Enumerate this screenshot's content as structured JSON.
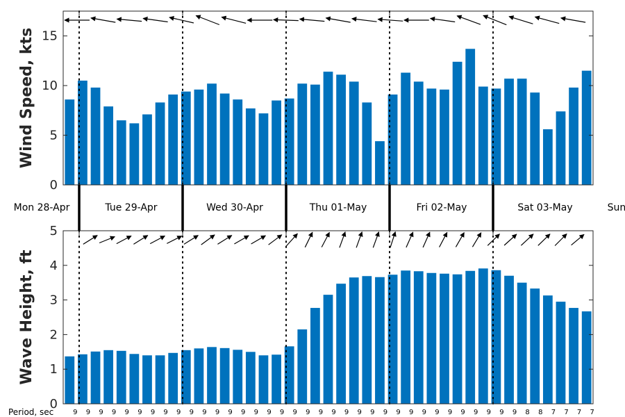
{
  "chart_data": {
    "type": "bar",
    "colors": {
      "bar": "#0072BD",
      "axis": "#262626",
      "arrow": "#000000"
    },
    "day_labels": [
      "Mon 28-Apr",
      "Tue 29-Apr",
      "Wed 30-Apr",
      "Thu 01-May",
      "Fri 02-May",
      "Sat 03-May",
      "Sun"
    ],
    "period_label": "Period, sec",
    "wind": {
      "ylabel": "Wind Speed, kts",
      "ylim": [
        0,
        17.5
      ],
      "yticks": [
        0,
        5,
        10,
        15
      ],
      "values": [
        8.6,
        10.5,
        9.8,
        7.9,
        6.5,
        6.2,
        7.1,
        8.3,
        9.1,
        9.4,
        9.6,
        10.2,
        9.2,
        8.6,
        7.7,
        7.2,
        8.5,
        8.7,
        10.2,
        10.1,
        11.4,
        11.1,
        10.4,
        8.3,
        4.4,
        9.1,
        11.3,
        10.4,
        9.7,
        9.6,
        12.4,
        13.7,
        9.9,
        9.7,
        10.7,
        10.7,
        9.3,
        5.6,
        7.4,
        9.8,
        11.5
      ],
      "direction_arrows": [
        "from-east",
        "from-east",
        "from-east",
        "from-east",
        "from-east",
        "from-east",
        "from-east",
        "from-east",
        "from-east",
        "from-east",
        "from-east",
        "from-east",
        "from-east",
        "from-east",
        "from-east",
        "from-east",
        "from-east",
        "from-east",
        "from-east",
        "from-east",
        "from-east",
        "from-east",
        "from-east",
        "from-east",
        "from-east",
        "from-east",
        "from-east",
        "from-east",
        "from-east",
        "from-east",
        "from-east",
        "from-east",
        "from-east",
        "from-east",
        "from-east",
        "from-east",
        "from-east",
        "from-east",
        "from-east",
        "from-east",
        "from-east"
      ],
      "arrow_angles_deg": [
        180,
        170,
        175,
        172,
        167,
        159,
        166,
        180,
        178,
        175,
        170,
        173,
        176,
        180,
        172,
        160,
        158,
        163,
        165,
        170,
        166,
        162,
        160,
        165,
        160,
        175,
        175,
        178,
        180,
        178,
        176,
        178,
        180,
        182,
        186,
        188,
        186,
        180
      ],
      "arrow_positions": [
        0,
        1,
        2,
        3,
        4,
        5,
        6,
        7,
        8,
        9,
        10,
        11,
        12,
        13,
        14,
        15,
        16,
        17,
        18,
        19,
        20,
        21,
        22,
        23,
        24,
        25,
        26,
        27,
        28,
        29,
        30,
        31,
        32,
        33,
        34,
        35,
        36,
        37
      ]
    },
    "wave": {
      "ylabel": "Wave Height, ft",
      "ylim": [
        0,
        5
      ],
      "yticks": [
        0,
        1,
        2,
        3,
        4,
        5
      ],
      "values": [
        1.37,
        1.43,
        1.51,
        1.55,
        1.53,
        1.44,
        1.4,
        1.4,
        1.47,
        1.55,
        1.6,
        1.64,
        1.61,
        1.56,
        1.5,
        1.4,
        1.42,
        1.66,
        2.15,
        2.77,
        3.15,
        3.47,
        3.65,
        3.69,
        3.66,
        3.73,
        3.85,
        3.83,
        3.78,
        3.76,
        3.74,
        3.84,
        3.91,
        3.86,
        3.7,
        3.5,
        3.33,
        3.13,
        2.95,
        2.77,
        2.67
      ],
      "arrow_angles_deg": [
        -32,
        -22,
        -28,
        -32,
        -28,
        -27,
        -32,
        -36,
        -32,
        -30,
        -30,
        -37,
        -48,
        -64,
        -62,
        -70,
        -70,
        -70,
        -72,
        -66,
        -66,
        -62,
        -60,
        -59,
        -44,
        -42,
        -43,
        -44,
        -45,
        -40,
        -42
      ],
      "arrow_count": 31
    },
    "periods": [
      "9",
      "9",
      "9",
      "9",
      "9",
      "9",
      "9",
      "9",
      "9",
      "9",
      "9",
      "9",
      "9",
      "9",
      "9",
      "9",
      "9",
      "9",
      "9",
      "9",
      "9",
      "9",
      "9",
      "9",
      "9",
      "9",
      "9",
      "9",
      "9",
      "9",
      "9",
      "9",
      "9",
      "9",
      "9",
      "8",
      "8",
      "7",
      "7",
      "7",
      "7"
    ]
  }
}
